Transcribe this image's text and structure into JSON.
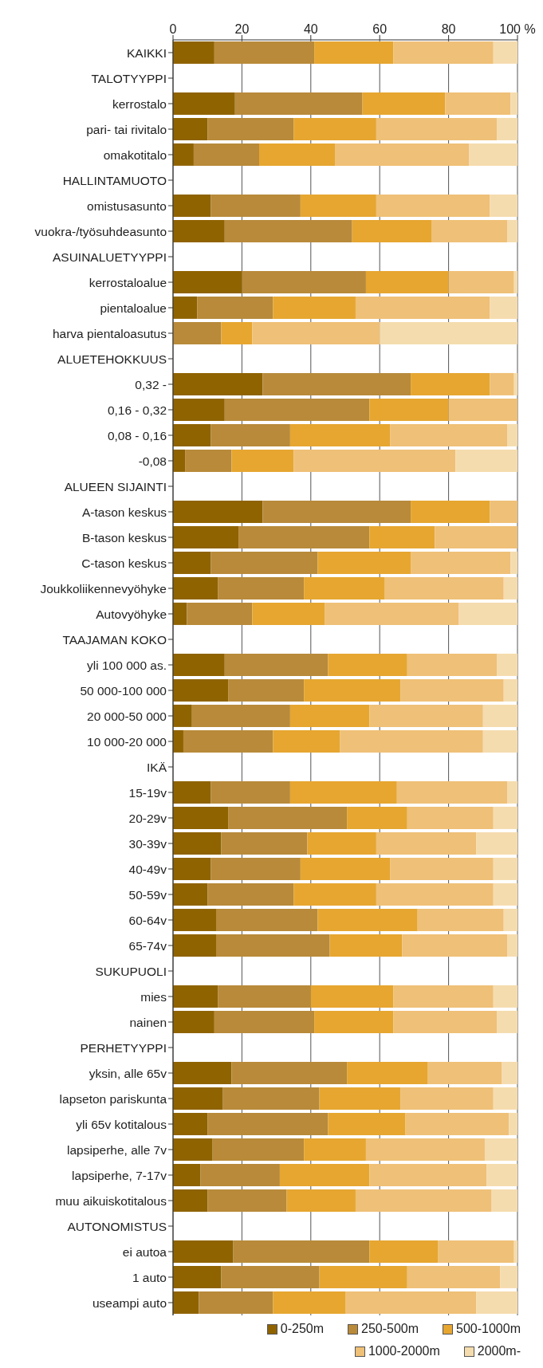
{
  "chart_data": {
    "type": "bar",
    "orientation": "horizontal",
    "stacked": true,
    "grid": "x",
    "legend": "bottom",
    "categories": [
      "KAIKKI",
      "TALOTYYPPI",
      "kerrostalo",
      "pari- tai rivitalo",
      "omakotitalo",
      "HALLINTAMUOTO",
      "omistusasunto",
      "vuokra-/työsuhdeasunto",
      "ASUINALUETYYPPI",
      "kerrostaloalue",
      "pientaloalue",
      "harva pientaloasutus",
      "ALUETEHOKKUUS",
      "0,32 -",
      "0,16 - 0,32",
      "0,08 - 0,16",
      "-0,08",
      "ALUEEN SIJAINTI",
      "A-tason keskus",
      "B-tason keskus",
      "C-tason keskus",
      "Joukkoliikennevyöhyke",
      "Autovyöhyke",
      "TAAJAMAN KOKO",
      "yli 100 000 as.",
      "50 000-100 000",
      "20 000-50 000",
      "10 000-20 000",
      "IKÄ",
      "15-19v",
      "20-29v",
      "30-39v",
      "40-49v",
      "50-59v",
      "60-64v",
      "65-74v",
      "SUKUPUOLI",
      "mies",
      "nainen",
      "PERHETYYPPI",
      "yksin, alle 65v",
      "lapseton pariskunta",
      "yli 65v kotitalous",
      "lapsiperhe, alle 7v",
      "lapsiperhe, 7-17v",
      "muu aikuiskotitalous",
      "AUTONOMISTUS",
      "ei autoa",
      "1 auto",
      "useampi auto"
    ],
    "xlim": [
      0,
      100
    ],
    "xticks": [
      0,
      20,
      40,
      60,
      80,
      {
        "value": 100,
        "label": "100 %"
      }
    ],
    "series": [
      {
        "name": "0-250m",
        "color": "#8f6300",
        "values": [
          12,
          null,
          18,
          10,
          6,
          null,
          11,
          15,
          null,
          20,
          7,
          0,
          null,
          26,
          15,
          11,
          3.5,
          null,
          26,
          19,
          11,
          13,
          4,
          null,
          15,
          16,
          5.5,
          3,
          null,
          11,
          16,
          14,
          11,
          10,
          12.5,
          12.5,
          null,
          13,
          12,
          null,
          17,
          14.5,
          10,
          11.5,
          8,
          10,
          null,
          17.5,
          14,
          7.5
        ]
      },
      {
        "name": "250-500m",
        "color": "#b88a3a",
        "values": [
          29,
          null,
          37,
          25,
          19,
          null,
          26,
          37,
          null,
          36,
          22,
          14,
          null,
          43,
          42,
          23,
          13.5,
          null,
          43,
          38,
          31,
          25,
          19,
          null,
          30,
          22,
          28.5,
          26,
          null,
          23,
          34.5,
          25,
          26,
          25,
          29.5,
          33,
          null,
          27,
          29,
          null,
          33.5,
          28,
          35,
          26.5,
          23,
          23,
          null,
          39.5,
          28.5,
          21.5
        ]
      },
      {
        "name": "500-1000m",
        "color": "#e6a630",
        "values": [
          23,
          null,
          24,
          24,
          22,
          null,
          22,
          23,
          null,
          24,
          24,
          9,
          null,
          23,
          23,
          29,
          18,
          null,
          23,
          19,
          27,
          23.5,
          21,
          null,
          23,
          28,
          23,
          19.5,
          null,
          31,
          17.5,
          20,
          26,
          24,
          29,
          21,
          null,
          24,
          23,
          null,
          23.5,
          23.5,
          22.5,
          18,
          26,
          20,
          null,
          20,
          25.5,
          21
        ]
      },
      {
        "name": "1000-2000m",
        "color": "#efc077",
        "values": [
          29,
          null,
          19,
          35,
          39,
          null,
          33,
          22,
          null,
          19,
          39,
          37,
          null,
          7,
          20,
          34,
          47,
          null,
          8,
          24,
          29,
          34.5,
          39,
          null,
          26,
          30,
          33,
          41.5,
          null,
          32,
          25,
          29,
          30,
          34,
          25,
          30.5,
          null,
          29,
          30,
          null,
          21.5,
          27,
          30,
          34.5,
          34,
          39.5,
          null,
          22,
          27,
          38
        ]
      },
      {
        "name": "2000m-",
        "color": "#f5dcae",
        "values": [
          7,
          null,
          2,
          6,
          14,
          null,
          8,
          3,
          null,
          1,
          8,
          40,
          null,
          1,
          0,
          3,
          18,
          null,
          0,
          0,
          2,
          4,
          17,
          null,
          6,
          4,
          10,
          10,
          null,
          3,
          7,
          12,
          7,
          7,
          4,
          3,
          null,
          7,
          6,
          null,
          4.5,
          7,
          2.5,
          9.5,
          9,
          7.5,
          null,
          1,
          5,
          12
        ]
      }
    ]
  }
}
